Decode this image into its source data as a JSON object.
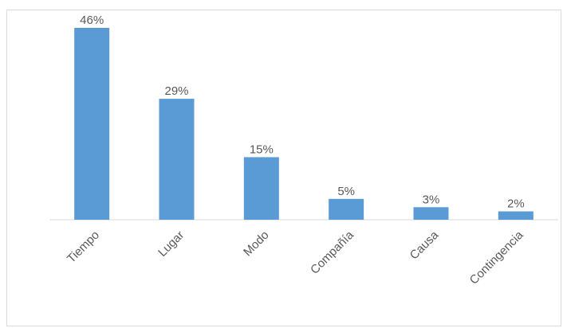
{
  "chart_data": {
    "type": "bar",
    "categories": [
      "Tiempo",
      "Lugar",
      "Modo",
      "Compañía",
      "Causa",
      "Contingencia"
    ],
    "values": [
      46,
      29,
      15,
      5,
      3,
      2
    ],
    "value_labels": [
      "46%",
      "29%",
      "15%",
      "5%",
      "3%",
      "2%"
    ],
    "unit": "%",
    "ylim": [
      0,
      46
    ],
    "grid": false,
    "legend": "none",
    "bar_color": "#5B9BD5",
    "axis_color": "#d9d9d9",
    "text_color": "#595959"
  }
}
